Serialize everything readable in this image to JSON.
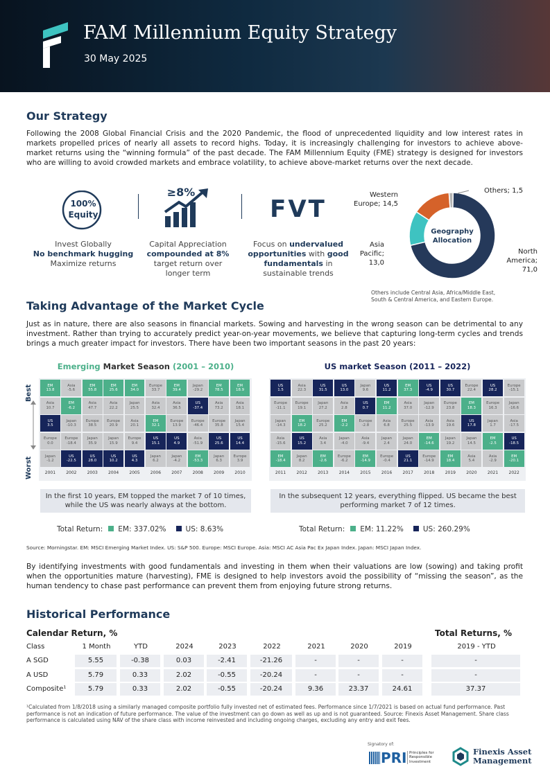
{
  "header": {
    "title": "FAM Millennium Equity Strategy",
    "date": "30 May 2025"
  },
  "strategy": {
    "heading": "Our Strategy",
    "paragraph": "Following the 2008 Global Financial Crisis and the 2020 Pandemic, the flood of unprecedented liquidity and low interest rates in markets propelled prices of nearly all assets to record highs. Today, it is increasingly challenging for investors to achieve above-market returns using the “winning formula” of the past decade. The FAM Millennium Equity (FME) strategy is designed for investors who are willing to avoid crowded markets and embrace volatility, to achieve above-market returns over the next decade."
  },
  "pillars": [
    {
      "icon": [
        "100%",
        "Equity"
      ],
      "lines": [
        [
          {
            "text": "Invest Globally",
            "bold": false
          }
        ],
        [
          {
            "text": "No benchmark hugging",
            "bold": true
          }
        ],
        [
          {
            "text": "Maximize returns",
            "bold": false
          }
        ]
      ]
    },
    {
      "icon": [
        "≥8%"
      ],
      "lines": [
        [
          {
            "text": "Capital Appreciation",
            "bold": false
          }
        ],
        [
          {
            "text": "compounded at 8%",
            "bold": true
          }
        ],
        [
          {
            "text": "target return over",
            "bold": false
          }
        ],
        [
          {
            "text": "longer term",
            "bold": false
          }
        ]
      ]
    },
    {
      "icon": [
        "FVT"
      ],
      "lines": [
        [
          {
            "text": "Focus on ",
            "bold": false
          },
          {
            "text": "undervalued",
            "bold": true
          }
        ],
        [
          {
            "text": "opportunities",
            "bold": true
          },
          {
            "text": " with ",
            "bold": false
          },
          {
            "text": "good",
            "bold": true
          }
        ],
        [
          {
            "text": "fundamentals",
            "bold": true
          },
          {
            "text": " in",
            "bold": false
          }
        ],
        [
          {
            "text": "sustainable trends",
            "bold": false
          }
        ]
      ]
    }
  ],
  "allocation": {
    "title": [
      "Geography",
      "Allocation"
    ],
    "segments": [
      {
        "label": [
          "North",
          "America;",
          "71,0"
        ],
        "value": 71.0,
        "color": "#25395a"
      },
      {
        "label": [
          "Asia",
          "Pacific;",
          "13,0"
        ],
        "value": 13.0,
        "color": "#3ec3c1"
      },
      {
        "label": [
          "Western",
          "Europe; 14,5"
        ],
        "value": 14.5,
        "color": "#d5622a"
      },
      {
        "label": [
          "Others; 1,5"
        ],
        "value": 1.5,
        "color": "#b4b4b4"
      }
    ],
    "note": [
      "Others include Central Asia, Africa/Middle East,",
      "South & Central America, and Eastern Europe."
    ]
  },
  "cycle": {
    "heading": "Taking Advantage of the Market Cycle",
    "paragraph": "Just as in nature, there are also seasons in financial markets. Sowing and harvesting in the wrong season can be detrimental to any investment. Rather than trying to accurately predict year-on-year movements, we believe that capturing long-term cycles and trends brings a much greater impact for investors. There have been two important seasons in the past 20 years:",
    "best": "Best",
    "worst": "Worst",
    "colors": {
      "EM": "#4cb08a",
      "US": "#17255a",
      "other": "#c9cacc"
    },
    "quilts": [
      {
        "title": [
          {
            "text": "Emerging",
            "color": "#4cb08a"
          },
          {
            "text": " Market Season ",
            "color": "#333"
          },
          {
            "text": "(2001 – 2010)",
            "color": "#4cb08a"
          }
        ],
        "years": [
          "2001",
          "2002",
          "2003",
          "2004",
          "2005",
          "2006",
          "2007",
          "2008",
          "2009",
          "2010"
        ],
        "rows": [
          [
            [
              "EM",
              "13.8"
            ],
            [
              "Asia",
              "-5.6"
            ],
            [
              "EM",
              "55.8"
            ],
            [
              "EM",
              "25.6"
            ],
            [
              "EM",
              "34.0"
            ],
            [
              "Europe",
              "33.7"
            ],
            [
              "EM",
              "39.4"
            ],
            [
              "Japan",
              "-29.2"
            ],
            [
              "EM",
              "78.5"
            ],
            [
              "EM",
              "18.9"
            ]
          ],
          [
            [
              "Asia",
              "10.7"
            ],
            [
              "EM",
              "-6.2"
            ],
            [
              "Asia",
              "47.7"
            ],
            [
              "Asia",
              "22.2"
            ],
            [
              "Japan",
              "25.5"
            ],
            [
              "Asia",
              "32.4"
            ],
            [
              "Asia",
              "36.5"
            ],
            [
              "US",
              "-37.4"
            ],
            [
              "Asia",
              "73.2"
            ],
            [
              "Asia",
              "18.1"
            ]
          ],
          [
            [
              "US",
              "3.5"
            ],
            [
              "Japan",
              "-10.3"
            ],
            [
              "Europe",
              "38.5"
            ],
            [
              "Europe",
              "20.9"
            ],
            [
              "Asia",
              "20.1"
            ],
            [
              "EM",
              "32.1"
            ],
            [
              "Europe",
              "13.9"
            ],
            [
              "Europe",
              "-46.4"
            ],
            [
              "Europe",
              "35.8"
            ],
            [
              "Japan",
              "15.4"
            ]
          ],
          [
            [
              "Europe",
              "0.0"
            ],
            [
              "Europe",
              "-18.4"
            ],
            [
              "Japan",
              "35.9"
            ],
            [
              "Japan",
              "15.9"
            ],
            [
              "Europe",
              "9.4"
            ],
            [
              "US",
              "15.1"
            ],
            [
              "US",
              "4.9"
            ],
            [
              "Asia",
              "-51.9"
            ],
            [
              "US",
              "25.6"
            ],
            [
              "US",
              "14.4"
            ]
          ],
          [
            [
              "Japan",
              "-1.2"
            ],
            [
              "US",
              "-22.5"
            ],
            [
              "US",
              "28.0"
            ],
            [
              "US",
              "10.2"
            ],
            [
              "US",
              "4.3"
            ],
            [
              "Japan",
              "6.2"
            ],
            [
              "Japan",
              "-4.2"
            ],
            [
              "EM",
              "-53.3"
            ],
            [
              "Japan",
              "6.3"
            ],
            [
              "Europe",
              "3.9"
            ]
          ]
        ],
        "caption": [
          "In the first 10 years, EM topped the market 7 of 10 times,",
          "while the US was nearly always at the bottom."
        ],
        "total_label": "Total Return:",
        "legend": [
          {
            "name": "EM: 337.02%",
            "key": "EM"
          },
          {
            "name": "US: 8.63%",
            "key": "US"
          }
        ]
      },
      {
        "title": [
          {
            "text": "US",
            "color": "#17255a"
          },
          {
            "text": " market Season ",
            "color": "#17255a"
          },
          {
            "text": "(2011 – 2022)",
            "color": "#17255a"
          }
        ],
        "years": [
          "2011",
          "2012",
          "2013",
          "2014",
          "2015",
          "2016",
          "2017",
          "2018",
          "2019",
          "2020",
          "2021",
          "2022"
        ],
        "rows": [
          [
            [
              "US",
              "1.5"
            ],
            [
              "Asia",
              "22.3"
            ],
            [
              "US",
              "31.5"
            ],
            [
              "US",
              "13.0"
            ],
            [
              "Japan",
              "9.6"
            ],
            [
              "US",
              "11.2"
            ],
            [
              "EM",
              "37.3"
            ],
            [
              "US",
              "-4.9"
            ],
            [
              "US",
              "30.7"
            ],
            [
              "Europe",
              "22.4"
            ],
            [
              "US",
              "28.2"
            ],
            [
              "Europe",
              "-15.1"
            ]
          ],
          [
            [
              "Europe",
              "-11.1"
            ],
            [
              "Europe",
              "19.1"
            ],
            [
              "Japan",
              "27.2"
            ],
            [
              "Asia",
              "2.8"
            ],
            [
              "US",
              "0.7"
            ],
            [
              "EM",
              "11.2"
            ],
            [
              "Asia",
              "37.0"
            ],
            [
              "Japan",
              "-12.9"
            ],
            [
              "Europe",
              "23.8"
            ],
            [
              "EM",
              "18.3"
            ],
            [
              "Europe",
              "16.3"
            ],
            [
              "Japan",
              "-16.6"
            ]
          ],
          [
            [
              "Japan",
              "-14.3"
            ],
            [
              "EM",
              "18.2"
            ],
            [
              "Europe",
              "25.2"
            ],
            [
              "EM",
              "-2.2"
            ],
            [
              "Europe",
              "-2.8"
            ],
            [
              "Asia",
              "6.8"
            ],
            [
              "Europe",
              "25.5"
            ],
            [
              "Asia",
              "-13.9"
            ],
            [
              "Asia",
              "19.6"
            ],
            [
              "US",
              "17.8"
            ],
            [
              "Japan",
              "1.7"
            ],
            [
              "Asia",
              "-17.5"
            ]
          ],
          [
            [
              "Asia",
              "-15.6"
            ],
            [
              "US",
              "15.2"
            ],
            [
              "Asia",
              "3.4"
            ],
            [
              "Japan",
              "-4.0"
            ],
            [
              "Asia",
              "-9.4"
            ],
            [
              "Japan",
              "2.4"
            ],
            [
              "Japan",
              "24.0"
            ],
            [
              "EM",
              "-14.6"
            ],
            [
              "Japan",
              "19.2"
            ],
            [
              "Japan",
              "14.5"
            ],
            [
              "EM",
              "-2.5"
            ],
            [
              "US",
              "-18.5"
            ]
          ],
          [
            [
              "EM",
              "-18.4"
            ],
            [
              "Japan",
              "8.2"
            ],
            [
              "EM",
              "-2.6"
            ],
            [
              "Europe",
              "-6.2"
            ],
            [
              "EM",
              "-14.9"
            ],
            [
              "Europe",
              "-0.4"
            ],
            [
              "US",
              "21.1"
            ],
            [
              "Europe",
              "-14.9"
            ],
            [
              "EM",
              "18.4"
            ],
            [
              "Asia",
              "5.4"
            ],
            [
              "Asia",
              "-2.9"
            ],
            [
              "EM",
              "-20.1"
            ]
          ]
        ],
        "caption": [
          "In the subsequent 12 years, everything flipped. US became the best",
          "performing market 7 of 12 times."
        ],
        "total_label": "Total Return:",
        "legend": [
          {
            "name": "EM: 11.22%",
            "key": "EM"
          },
          {
            "name": "US: 260.29%",
            "key": "US"
          }
        ]
      }
    ],
    "source": "Source: Morningstar. EM: MSCI Emerging Market Index. US: S&P 500. Europe: MSCI Europe. Asia: MSCI AC Asia Pac Ex Japan Index. Japan: MSCI Japan Index."
  },
  "closing": "By identifying investments with good fundamentals and investing in them when their valuations are low (sowing) and taking profit when the opportunities mature (harvesting), FME is designed to help investors avoid the possibility of “missing the season”, as the human tendency to chase past performance can prevent them from enjoying future strong returns.",
  "performance": {
    "heading": "Historical Performance",
    "calendar_heading": "Calendar Return, %",
    "total_heading": "Total Returns, %",
    "columns": [
      "Class",
      "1 Month",
      "YTD",
      "2024",
      "2023",
      "2022",
      "2021",
      "2020",
      "2019",
      "2019 - YTD"
    ],
    "rows": [
      [
        "A SGD",
        "5.55",
        "-0.38",
        "0.03",
        "-2.41",
        "-21.26",
        "-",
        "-",
        "-",
        "-"
      ],
      [
        "A USD",
        "5.79",
        "0.33",
        "2.02",
        "-0.55",
        "-20.24",
        "-",
        "-",
        "-",
        "-"
      ],
      [
        "Composite¹",
        "5.79",
        "0.33",
        "2.02",
        "-0.55",
        "-20.24",
        "9.36",
        "23.37",
        "24.61",
        "37.37"
      ]
    ],
    "footnote": "¹Calculated from 1/8/2018 using a similarly managed composite portfolio fully invested net of estimated fees. Performance since 1/7/2021 is based on actual fund performance. Past performance is not an indication of future performance. The value of the investment can go down as well as up and is not guaranteed. Source: Finexis Asset Management. Share class performance is calculated using NAV of the share class with income reinvested and including ongoing charges, excluding any entry and exit fees."
  },
  "footer": {
    "signatory": "Signatory of:",
    "pri": "PRI",
    "pri_sub": [
      "Principles for",
      "Responsible",
      "Investment"
    ],
    "company": [
      "Finexis Asset",
      "Management"
    ]
  }
}
